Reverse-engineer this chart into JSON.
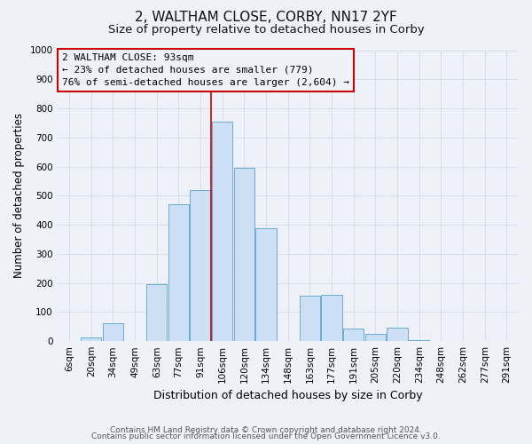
{
  "title": "2, WALTHAM CLOSE, CORBY, NN17 2YF",
  "subtitle": "Size of property relative to detached houses in Corby",
  "xlabel": "Distribution of detached houses by size in Corby",
  "ylabel": "Number of detached properties",
  "bar_color": "#ccdff5",
  "bar_edge_color": "#6aabd2",
  "categories": [
    "6sqm",
    "20sqm",
    "34sqm",
    "49sqm",
    "63sqm",
    "77sqm",
    "91sqm",
    "106sqm",
    "120sqm",
    "134sqm",
    "148sqm",
    "163sqm",
    "177sqm",
    "191sqm",
    "205sqm",
    "220sqm",
    "234sqm",
    "248sqm",
    "262sqm",
    "277sqm",
    "291sqm"
  ],
  "values": [
    0,
    12,
    63,
    0,
    197,
    470,
    520,
    755,
    597,
    388,
    0,
    155,
    158,
    42,
    25,
    45,
    5,
    0,
    0,
    0,
    0
  ],
  "ylim": [
    0,
    1000
  ],
  "yticks": [
    0,
    100,
    200,
    300,
    400,
    500,
    600,
    700,
    800,
    900,
    1000
  ],
  "annotation_line1": "2 WALTHAM CLOSE: 93sqm",
  "annotation_line2": "← 23% of detached houses are smaller (779)",
  "annotation_line3": "76% of semi-detached houses are larger (2,604) →",
  "annotation_box_color": "#cc0000",
  "vline_index": 6.5,
  "footer_line1": "Contains HM Land Registry data © Crown copyright and database right 2024.",
  "footer_line2": "Contains public sector information licensed under the Open Government Licence v3.0.",
  "background_color": "#eef2f8",
  "grid_color": "#d8dfe8",
  "title_fontsize": 11,
  "subtitle_fontsize": 9.5,
  "xlabel_fontsize": 9,
  "ylabel_fontsize": 8.5,
  "tick_fontsize": 7.5,
  "ann_fontsize": 8,
  "footer_fontsize": 6.5
}
